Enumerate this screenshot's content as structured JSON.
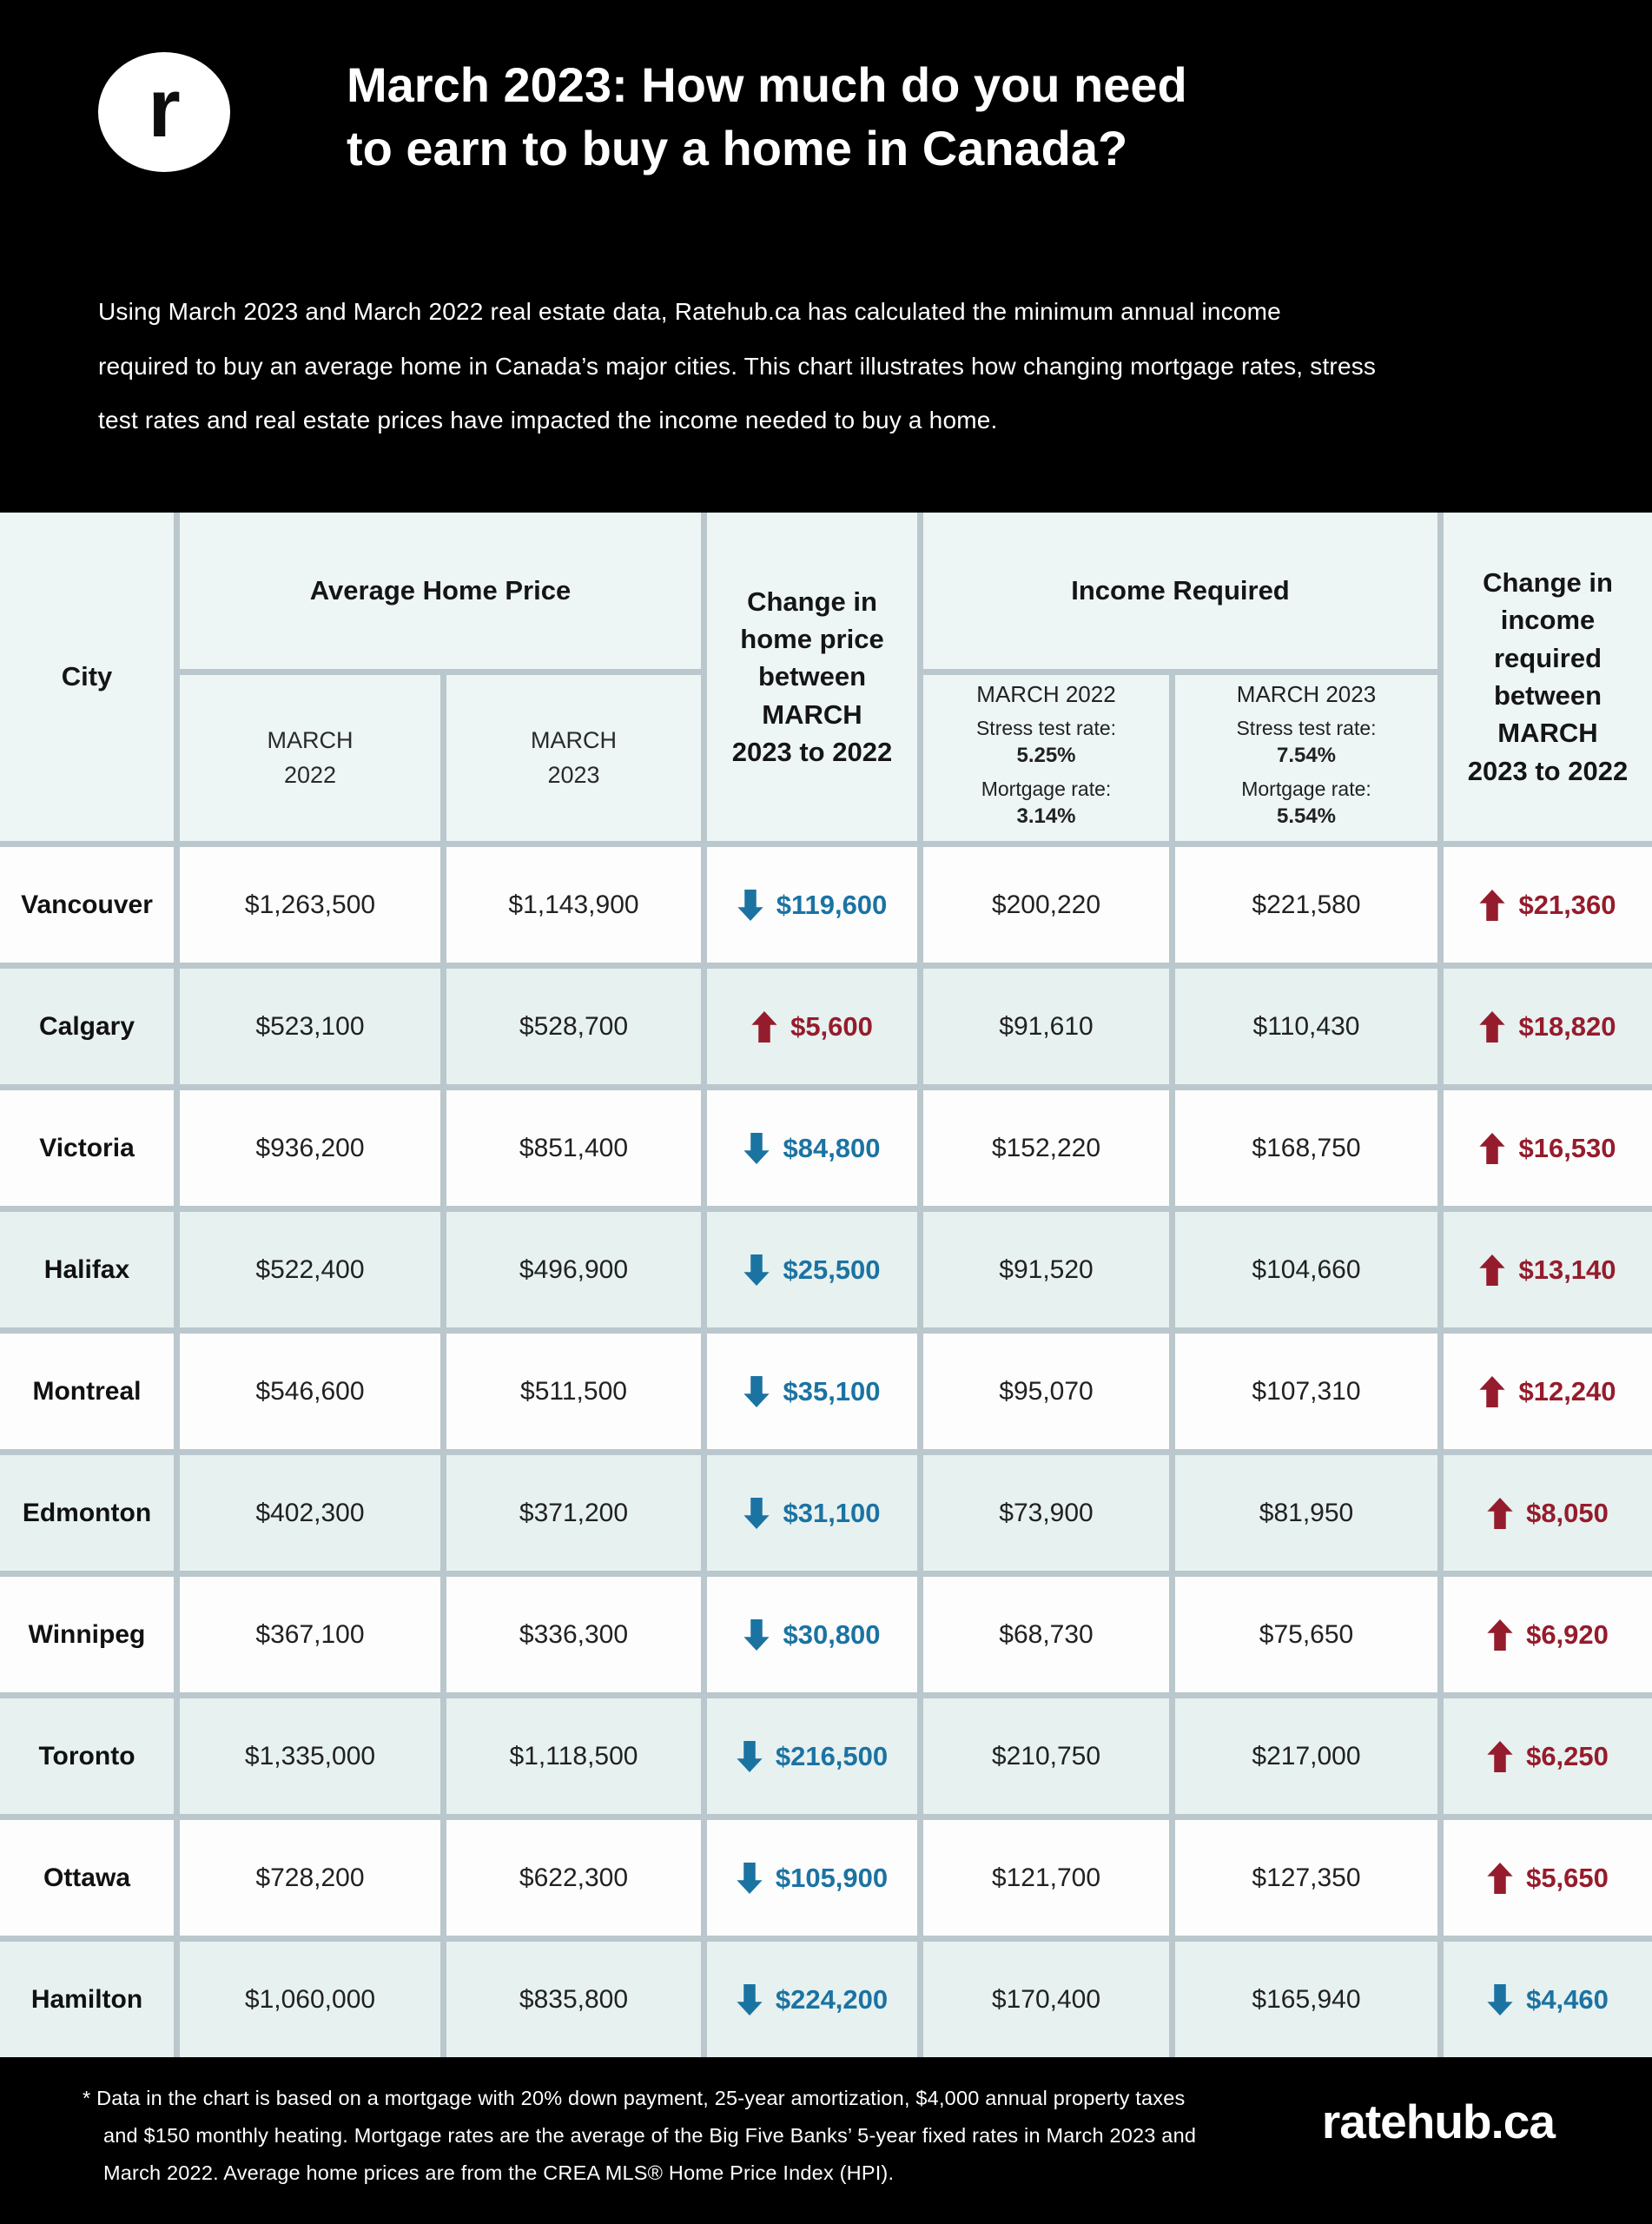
{
  "header": {
    "logo_letter": "r",
    "title": "March 2023: How much do you need\nto earn to buy a home in Canada?",
    "intro": "Using March 2023 and March 2022 real estate data, Ratehub.ca has calculated the minimum annual income\nrequired to buy an average home in Canada’s major cities. This chart illustrates how changing mortgage rates, stress\ntest rates and real estate prices have impacted the income needed to buy a home."
  },
  "table": {
    "col_city": "City",
    "group_avg_price": "Average Home Price",
    "sub_price_2022": "MARCH\n2022",
    "sub_price_2023": "MARCH\n2023",
    "col_change_price": "Change in\nhome price\nbetween\nMARCH\n2023 to 2022",
    "group_income": "Income Required",
    "income_sub_2022": {
      "month": "MARCH 2022",
      "stress_label": "Stress test rate:",
      "stress_value": "5.25%",
      "mortgage_label": "Mortgage rate:",
      "mortgage_value": "3.14%"
    },
    "income_sub_2023": {
      "month": "MARCH 2023",
      "stress_label": "Stress test rate:",
      "stress_value": "7.54%",
      "mortgage_label": "Mortgage rate:",
      "mortgage_value": "5.54%"
    },
    "col_change_income": "Change in\nincome\nrequired\nbetween\nMARCH\n2023 to 2022",
    "rows": [
      {
        "city": "Vancouver",
        "price_2022": "$1,263,500",
        "price_2023": "$1,143,900",
        "price_change": {
          "dir": "down",
          "value": "$119,600"
        },
        "income_2022": "$200,220",
        "income_2023": "$221,580",
        "income_change": {
          "dir": "up",
          "value": "$21,360"
        }
      },
      {
        "city": "Calgary",
        "price_2022": "$523,100",
        "price_2023": "$528,700",
        "price_change": {
          "dir": "up",
          "value": "$5,600"
        },
        "income_2022": "$91,610",
        "income_2023": "$110,430",
        "income_change": {
          "dir": "up",
          "value": "$18,820"
        }
      },
      {
        "city": "Victoria",
        "price_2022": "$936,200",
        "price_2023": "$851,400",
        "price_change": {
          "dir": "down",
          "value": "$84,800"
        },
        "income_2022": "$152,220",
        "income_2023": "$168,750",
        "income_change": {
          "dir": "up",
          "value": "$16,530"
        }
      },
      {
        "city": "Halifax",
        "price_2022": "$522,400",
        "price_2023": "$496,900",
        "price_change": {
          "dir": "down",
          "value": "$25,500"
        },
        "income_2022": "$91,520",
        "income_2023": "$104,660",
        "income_change": {
          "dir": "up",
          "value": "$13,140"
        }
      },
      {
        "city": "Montreal",
        "price_2022": "$546,600",
        "price_2023": "$511,500",
        "price_change": {
          "dir": "down",
          "value": "$35,100"
        },
        "income_2022": "$95,070",
        "income_2023": "$107,310",
        "income_change": {
          "dir": "up",
          "value": "$12,240"
        }
      },
      {
        "city": "Edmonton",
        "price_2022": "$402,300",
        "price_2023": "$371,200",
        "price_change": {
          "dir": "down",
          "value": "$31,100"
        },
        "income_2022": "$73,900",
        "income_2023": "$81,950",
        "income_change": {
          "dir": "up",
          "value": "$8,050"
        }
      },
      {
        "city": "Winnipeg",
        "price_2022": "$367,100",
        "price_2023": "$336,300",
        "price_change": {
          "dir": "down",
          "value": "$30,800"
        },
        "income_2022": "$68,730",
        "income_2023": "$75,650",
        "income_change": {
          "dir": "up",
          "value": "$6,920"
        }
      },
      {
        "city": "Toronto",
        "price_2022": "$1,335,000",
        "price_2023": "$1,118,500",
        "price_change": {
          "dir": "down",
          "value": "$216,500"
        },
        "income_2022": "$210,750",
        "income_2023": "$217,000",
        "income_change": {
          "dir": "up",
          "value": "$6,250"
        }
      },
      {
        "city": "Ottawa",
        "price_2022": "$728,200",
        "price_2023": "$622,300",
        "price_change": {
          "dir": "down",
          "value": "$105,900"
        },
        "income_2022": "$121,700",
        "income_2023": "$127,350",
        "income_change": {
          "dir": "up",
          "value": "$5,650"
        }
      },
      {
        "city": "Hamilton",
        "price_2022": "$1,060,000",
        "price_2023": "$835,800",
        "price_change": {
          "dir": "down",
          "value": "$224,200"
        },
        "income_2022": "$170,400",
        "income_2023": "$165,940",
        "income_change": {
          "dir": "down",
          "value": "$4,460"
        }
      }
    ]
  },
  "footer": {
    "footnote": "* Data in the chart is based on a mortgage with 20% down payment, 25-year amortization, $4,000 annual property taxes\nand $150 monthly heating. Mortgage rates are the average of the Big Five Banks’ 5-year fixed rates in March 2023 and\nMarch 2022.  Average home prices are from the CREA MLS® Home Price Index (HPI).",
    "brand": "ratehub.ca"
  },
  "colors": {
    "up_red": "#951c2c",
    "down_blue": "#1b73a2",
    "row_tint": "#e7f1f0",
    "header_tint": "#edf5f5",
    "grid_line": "#bac7cc"
  },
  "chart_data": {
    "type": "table",
    "title": "March 2023: How much do you need to earn to buy a home in Canada?",
    "columns": [
      "City",
      "Average Home Price MARCH 2022",
      "Average Home Price MARCH 2023",
      "Change in home price between MARCH 2023 to 2022",
      "Income Required MARCH 2022 (Stress test rate: 5.25%, Mortgage rate: 3.14%)",
      "Income Required MARCH 2023 (Stress test rate: 7.54%, Mortgage rate: 5.54%)",
      "Change in income required between MARCH 2023 to 2022"
    ],
    "rows": [
      [
        "Vancouver",
        1263500,
        1143900,
        -119600,
        200220,
        221580,
        21360
      ],
      [
        "Calgary",
        523100,
        528700,
        5600,
        91610,
        110430,
        18820
      ],
      [
        "Victoria",
        936200,
        851400,
        -84800,
        152220,
        168750,
        16530
      ],
      [
        "Halifax",
        522400,
        496900,
        -25500,
        91520,
        104660,
        13140
      ],
      [
        "Montreal",
        546600,
        511500,
        -35100,
        95070,
        107310,
        12240
      ],
      [
        "Edmonton",
        402300,
        371200,
        -31100,
        73900,
        81950,
        8050
      ],
      [
        "Winnipeg",
        367100,
        336300,
        -30800,
        68730,
        75650,
        6920
      ],
      [
        "Toronto",
        1335000,
        1118500,
        -216500,
        210750,
        217000,
        6250
      ],
      [
        "Ottawa",
        728200,
        622300,
        -105900,
        121700,
        127350,
        5650
      ],
      [
        "Hamilton",
        1060000,
        835800,
        -224200,
        170400,
        165940,
        -4460
      ]
    ]
  }
}
